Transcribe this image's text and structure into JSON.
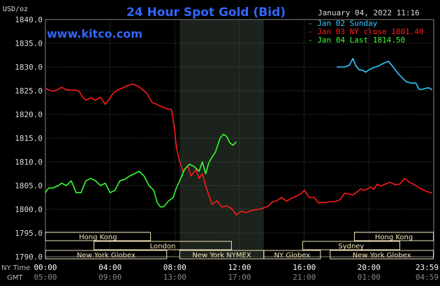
{
  "chart_data": {
    "type": "line",
    "title": "24 Hour Spot Gold (Bid)",
    "site": "www.kitco.com",
    "timestamp": "January 04, 2022 11:16",
    "ylabel": "USD/oz",
    "ylim": [
      1790,
      1840
    ],
    "y_ticks": [
      "1840.0",
      "1835.0",
      "1830.0",
      "1825.0",
      "1820.0",
      "1815.0",
      "1810.0",
      "1805.0",
      "1800.0",
      "1795.0",
      "1790.0"
    ],
    "x_axis": {
      "row1_label": "NY Time",
      "row2_label": "GMT",
      "ny_ticks": [
        "00:00",
        "04:00",
        "08:00",
        "12:00",
        "16:00",
        "20:00",
        "23:59"
      ],
      "gmt_ticks": [
        "05:00",
        "09:00",
        "13:00",
        "17:00",
        "21:00",
        "01:00",
        "04:59"
      ]
    },
    "colors": {
      "blue": "#33ccff",
      "red": "#ff1a1a",
      "green": "#33ff33",
      "title": "#3366ff",
      "grid": "#555555",
      "shade": "#1c231c",
      "band": "#f5e6b8"
    },
    "legend": [
      {
        "label": "Jan 02 Sunday",
        "color": "#33ccff"
      },
      {
        "label": "Jan 03 NY close 1801.40",
        "color": "#ff1a1a"
      },
      {
        "label": "Jan 04 Last 1814.50",
        "color": "#33ff33"
      }
    ],
    "sessions_row1": [
      {
        "label": "Hong Kong",
        "x0": 0,
        "x1": 6.5
      },
      {
        "label": "Hong Kong",
        "x0": 19.1,
        "x1": 23.98
      }
    ],
    "sessions_row2": [
      {
        "label": "London",
        "x0": 3,
        "x1": 11.5
      },
      {
        "label": "Sydney",
        "x0": 15.9,
        "x1": 21.9
      }
    ],
    "sessions_row3": [
      {
        "label": "New York Globex",
        "x0": 0,
        "x1": 7.5
      },
      {
        "label": "New York NYMEX",
        "x0": 8.3,
        "x1": 13.5
      },
      {
        "label": "NY Globex",
        "x0": 13.5,
        "x1": 17
      },
      {
        "label": "New York Globex",
        "x0": 17.6,
        "x1": 23.98
      }
    ],
    "shade_range": [
      8.3,
      13.5
    ],
    "series": [
      {
        "name": "Jan 02 Sunday",
        "color": "#33ccff",
        "x": [
          18.0,
          18.5,
          18.8,
          19.0,
          19.2,
          19.4,
          19.6,
          19.8,
          20.0,
          20.3,
          20.6,
          20.9,
          21.2,
          21.4,
          21.6,
          21.8,
          22.0,
          22.3,
          22.6,
          22.9,
          23.1,
          23.3,
          23.5,
          23.7,
          23.9
        ],
        "values": [
          1830.0,
          1830.0,
          1830.4,
          1831.8,
          1830.2,
          1829.4,
          1829.3,
          1828.9,
          1829.4,
          1829.9,
          1830.2,
          1830.8,
          1831.2,
          1830.4,
          1829.5,
          1828.6,
          1827.9,
          1826.9,
          1826.6,
          1826.6,
          1825.3,
          1825.3,
          1825.5,
          1825.6,
          1825.2
        ]
      },
      {
        "name": "Jan 03 NY close 1801.40",
        "color": "#ff1a1a",
        "x": [
          0.0,
          0.2,
          0.5,
          0.8,
          1.0,
          1.3,
          1.6,
          1.9,
          2.1,
          2.3,
          2.5,
          2.8,
          3.1,
          3.4,
          3.7,
          4.0,
          4.2,
          4.5,
          4.8,
          5.1,
          5.4,
          5.7,
          6.0,
          6.3,
          6.6,
          6.9,
          7.2,
          7.5,
          7.8,
          8.0,
          8.1,
          8.3,
          8.5,
          8.8,
          9.0,
          9.3,
          9.5,
          9.7,
          9.9,
          10.1,
          10.3,
          10.6,
          10.9,
          11.2,
          11.5,
          11.8,
          12.1,
          12.4,
          12.8,
          13.2,
          13.5,
          13.8,
          14.0,
          14.3,
          14.6,
          14.9,
          15.2,
          15.5,
          15.8,
          16.0,
          16.3,
          16.6,
          16.9,
          17.1,
          17.3,
          17.6,
          17.9,
          18.2,
          18.5,
          18.8,
          19.0,
          19.2,
          19.5,
          19.7,
          19.9,
          20.1,
          20.3,
          20.5,
          20.7,
          21.0,
          21.3,
          21.6,
          21.9,
          22.2,
          22.5,
          22.8,
          23.1,
          23.4,
          23.7,
          23.9
        ],
        "values": [
          1825.5,
          1825.2,
          1824.9,
          1825.3,
          1825.7,
          1825.2,
          1825.1,
          1825.1,
          1824.8,
          1823.6,
          1823.0,
          1823.5,
          1823.0,
          1823.6,
          1822.1,
          1823.5,
          1824.5,
          1825.2,
          1825.6,
          1826.1,
          1826.4,
          1826.0,
          1825.3,
          1824.3,
          1822.5,
          1822.1,
          1821.6,
          1821.2,
          1821.0,
          1816.5,
          1813.0,
          1810.0,
          1808.0,
          1809.2,
          1807.0,
          1808.4,
          1806.5,
          1807.5,
          1805.0,
          1803.0,
          1801.0,
          1801.8,
          1800.5,
          1800.7,
          1800.2,
          1798.8,
          1799.6,
          1799.3,
          1799.8,
          1800.0,
          1800.3,
          1800.7,
          1801.5,
          1801.8,
          1802.5,
          1801.7,
          1802.3,
          1802.7,
          1803.3,
          1804.0,
          1802.5,
          1802.5,
          1801.3,
          1801.5,
          1801.4,
          1801.6,
          1801.6,
          1802.0,
          1803.4,
          1803.2,
          1803.0,
          1803.5,
          1804.3,
          1804.0,
          1804.3,
          1804.7,
          1804.2,
          1805.3,
          1804.9,
          1805.3,
          1805.7,
          1805.2,
          1805.3,
          1806.5,
          1805.7,
          1805.2,
          1804.5,
          1804.0,
          1803.6,
          1803.4
        ]
      },
      {
        "name": "Jan 04 Last 1814.50",
        "color": "#33ff33",
        "x": [
          0.0,
          0.2,
          0.5,
          0.8,
          1.0,
          1.3,
          1.6,
          1.9,
          2.2,
          2.5,
          2.8,
          3.1,
          3.4,
          3.7,
          4.0,
          4.3,
          4.6,
          4.9,
          5.2,
          5.5,
          5.8,
          6.1,
          6.4,
          6.7,
          6.9,
          7.1,
          7.3,
          7.6,
          7.9,
          8.1,
          8.3,
          8.6,
          8.9,
          9.2,
          9.5,
          9.7,
          9.9,
          10.1,
          10.3,
          10.5,
          10.8,
          11.0,
          11.2,
          11.4,
          11.6,
          11.8
        ],
        "values": [
          1803.5,
          1804.5,
          1804.5,
          1805.0,
          1805.5,
          1805.0,
          1806.0,
          1803.5,
          1803.5,
          1806.0,
          1806.5,
          1806.0,
          1805.0,
          1805.5,
          1803.5,
          1804.0,
          1806.0,
          1806.3,
          1807.0,
          1807.5,
          1808.0,
          1807.0,
          1805.0,
          1804.0,
          1801.5,
          1800.5,
          1800.5,
          1801.7,
          1802.5,
          1804.5,
          1806.0,
          1808.4,
          1809.5,
          1809.0,
          1808.0,
          1810.0,
          1807.5,
          1809.8,
          1811.0,
          1812.0,
          1815.0,
          1815.8,
          1815.4,
          1814.0,
          1813.5,
          1814.2
        ]
      }
    ]
  }
}
